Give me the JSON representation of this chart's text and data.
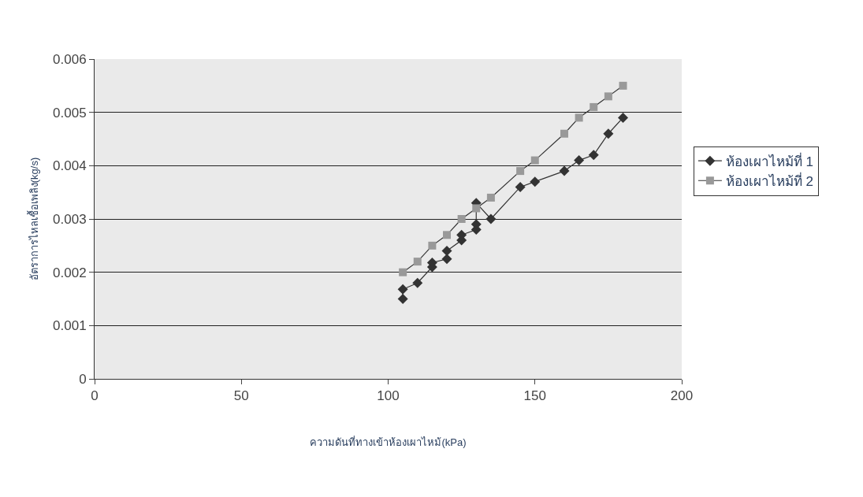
{
  "chart_data": {
    "type": "line",
    "xlabel": "ความดันที่ทางเข้าห้องเผาไหม้(kPa)",
    "ylabel": "อัตราการไหลเชื้อเพลิง(kg/s)",
    "xlim": [
      0,
      200
    ],
    "xticks": [
      0,
      50,
      100,
      150,
      200
    ],
    "ylim": [
      0,
      0.006
    ],
    "yticks": [
      "0",
      0.001,
      0.002,
      0.003,
      0.004,
      0.005,
      0.006
    ],
    "grid": "y",
    "legend": "right",
    "line_style": "solid",
    "series": [
      {
        "name": "ห้องเผาไหม้ที่ 1",
        "color": "#333333",
        "marker": "diamond",
        "x": [
          105,
          105,
          110,
          115,
          115,
          120,
          120,
          125,
          125,
          130,
          130,
          130,
          135,
          145,
          150,
          160,
          165,
          170,
          175,
          180
        ],
        "values": [
          0.0015,
          0.00168,
          0.0018,
          0.0021,
          0.00218,
          0.00225,
          0.0024,
          0.0026,
          0.0027,
          0.0028,
          0.0029,
          0.0033,
          0.003,
          0.0036,
          0.0037,
          0.0039,
          0.0041,
          0.0042,
          0.0046,
          0.0049
        ]
      },
      {
        "name": "ห้องเผาไหม้ที่ 2",
        "color": "#999999",
        "marker": "square",
        "x": [
          105,
          110,
          115,
          120,
          125,
          130,
          135,
          145,
          150,
          160,
          165,
          170,
          175,
          180
        ],
        "values": [
          0.002,
          0.0022,
          0.0025,
          0.0027,
          0.003,
          0.0032,
          0.0034,
          0.0039,
          0.0041,
          0.0046,
          0.0049,
          0.0051,
          0.0053,
          0.0055
        ]
      }
    ]
  }
}
